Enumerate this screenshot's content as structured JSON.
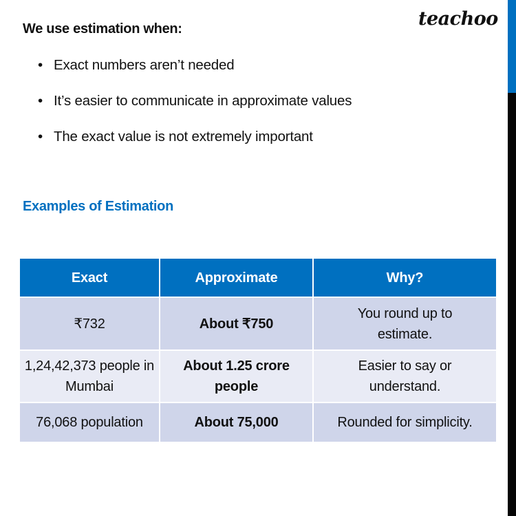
{
  "logo": "teachoo",
  "colors": {
    "accent": "#0070C0",
    "row_dark": "#CFD5EA",
    "row_light": "#E9EBF5"
  },
  "heading": "We use estimation when:",
  "bullets": [
    "Exact numbers aren’t needed",
    "It’s easier to communicate in approximate values",
    "The exact value is not extremely important"
  ],
  "examples_heading": "Examples of Estimation",
  "table": {
    "headers": [
      "Exact",
      "Approximate",
      "Why?"
    ],
    "rows": [
      [
        "₹732",
        "About ₹750",
        "You round up to estimate."
      ],
      [
        "1,24,42,373 people in Mumbai",
        "About 1.25 crore people",
        "Easier to say or understand."
      ],
      [
        "76,068 population",
        "About 75,000",
        "Rounded for simplicity."
      ]
    ]
  }
}
